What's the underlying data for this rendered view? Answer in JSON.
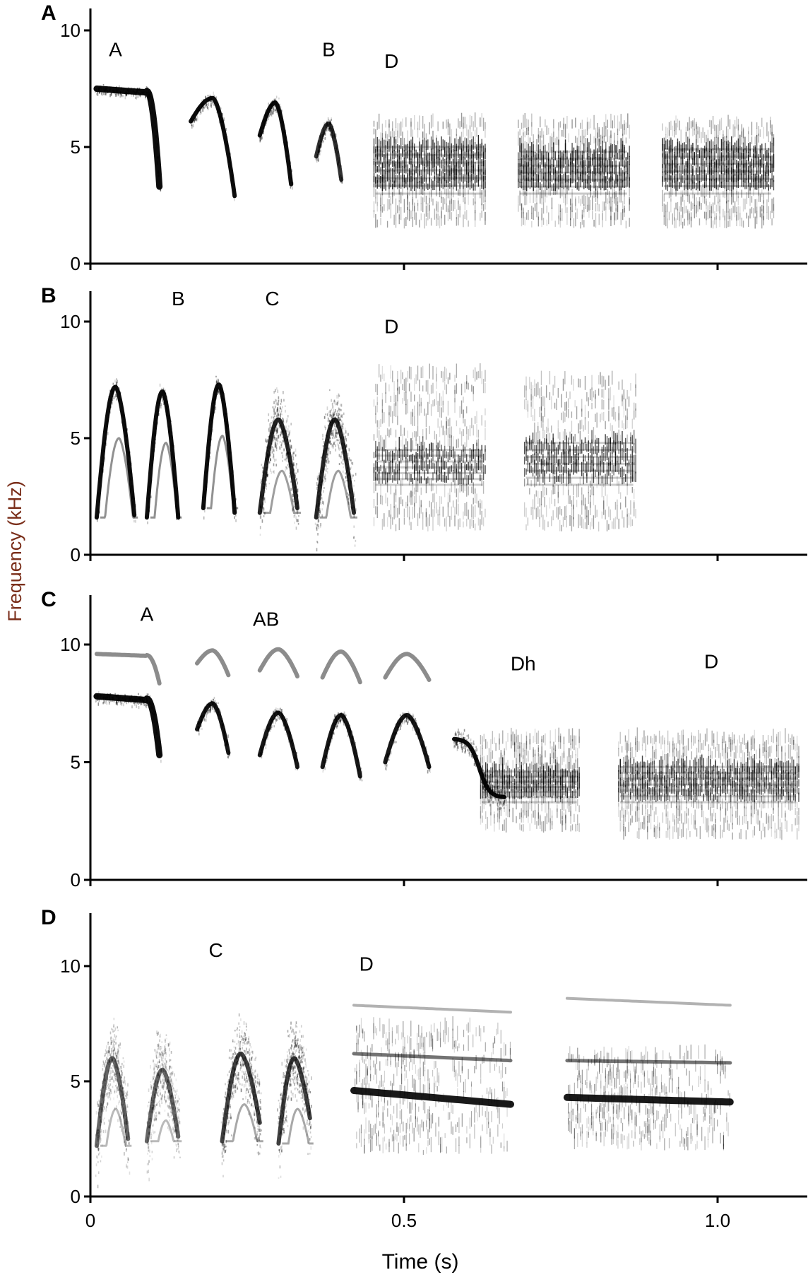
{
  "figure": {
    "ylabel": "Frequency (kHz)",
    "xlabel": "Time (s)",
    "x_ticks": [
      "0",
      "0.5",
      "1.0"
    ],
    "colors": {
      "ink": "#000000",
      "axis_label": "#7a2e1a",
      "background": "#ffffff"
    }
  },
  "chart_data": [
    {
      "type": "spectrogram",
      "panel": "A",
      "xlim": [
        0,
        1.15
      ],
      "ylim": [
        0,
        11
      ],
      "y_ticks": [
        "0",
        "5",
        "10"
      ],
      "syllable_labels": [
        {
          "text": "A",
          "t": 0.04,
          "f": 8.9
        },
        {
          "text": "B",
          "t": 0.38,
          "f": 8.9
        },
        {
          "text": "D",
          "t": 0.48,
          "f": 8.4
        }
      ],
      "notes": [
        {
          "shape": "flat_drop",
          "t0": 0.01,
          "t1": 0.11,
          "f": 7.4,
          "f_end": 3.3,
          "spread": 0.25,
          "intensity": 0.95
        },
        {
          "shape": "arch",
          "t0": 0.16,
          "t1": 0.23,
          "f_start": 6.1,
          "f_peak": 7.1,
          "f_end": 2.9,
          "spread": 0.35,
          "intensity": 0.95
        },
        {
          "shape": "arch",
          "t0": 0.27,
          "t1": 0.32,
          "f_start": 5.5,
          "f_peak": 6.9,
          "f_end": 3.4,
          "spread": 0.35,
          "intensity": 0.95
        },
        {
          "shape": "arch",
          "t0": 0.36,
          "t1": 0.4,
          "f_start": 4.6,
          "f_peak": 6.0,
          "f_end": 3.6,
          "spread": 0.4,
          "intensity": 0.8
        },
        {
          "shape": "noise",
          "t0": 0.45,
          "t1": 0.63,
          "f_low": 1.5,
          "f_high": 6.0,
          "core_low": 3.0,
          "core_high": 5.0,
          "intensity": 0.85
        },
        {
          "shape": "noise",
          "t0": 0.68,
          "t1": 0.86,
          "f_low": 1.5,
          "f_high": 6.0,
          "core_low": 3.0,
          "core_high": 4.8,
          "intensity": 0.85
        },
        {
          "shape": "noise",
          "t0": 0.91,
          "t1": 1.09,
          "f_low": 1.5,
          "f_high": 6.0,
          "core_low": 3.0,
          "core_high": 4.9,
          "intensity": 0.85
        }
      ]
    },
    {
      "type": "spectrogram",
      "panel": "B",
      "xlim": [
        0,
        1.15
      ],
      "ylim": [
        0,
        11
      ],
      "y_ticks": [
        "0",
        "5",
        "10"
      ],
      "syllable_labels": [
        {
          "text": "B",
          "t": 0.14,
          "f": 10.7
        },
        {
          "text": "C",
          "t": 0.29,
          "f": 10.7
        },
        {
          "text": "D",
          "t": 0.48,
          "f": 9.5
        }
      ],
      "notes": [
        {
          "shape": "v_arch",
          "t0": 0.01,
          "t1": 0.07,
          "f_start": 1.6,
          "f_peak": 7.2,
          "f_end": 1.7,
          "spread": 0.5,
          "intensity": 0.95
        },
        {
          "shape": "v_arch",
          "t0": 0.09,
          "t1": 0.14,
          "f_start": 1.6,
          "f_peak": 7.0,
          "f_end": 1.6,
          "spread": 0.5,
          "intensity": 0.95
        },
        {
          "shape": "v_arch",
          "t0": 0.18,
          "t1": 0.23,
          "f_start": 2.0,
          "f_peak": 7.3,
          "f_end": 1.8,
          "spread": 0.5,
          "intensity": 0.95
        },
        {
          "shape": "noisy_arch",
          "t0": 0.27,
          "t1": 0.33,
          "f_start": 1.8,
          "f_peak": 5.8,
          "f_end": 2.0,
          "spread": 0.9,
          "intensity": 0.85
        },
        {
          "shape": "noisy_arch",
          "t0": 0.36,
          "t1": 0.42,
          "f_start": 1.6,
          "f_peak": 5.8,
          "f_end": 1.8,
          "spread": 0.9,
          "intensity": 0.85
        },
        {
          "shape": "noise",
          "t0": 0.45,
          "t1": 0.63,
          "f_low": 1.0,
          "f_high": 7.8,
          "core_low": 3.0,
          "core_high": 4.5,
          "intensity": 0.8
        },
        {
          "shape": "noise",
          "t0": 0.69,
          "t1": 0.87,
          "f_low": 1.0,
          "f_high": 7.5,
          "core_low": 3.0,
          "core_high": 4.8,
          "intensity": 0.8
        }
      ]
    },
    {
      "type": "spectrogram",
      "panel": "C",
      "xlim": [
        0,
        1.15
      ],
      "ylim": [
        0,
        12
      ],
      "y_ticks": [
        "0",
        "5",
        "10"
      ],
      "syllable_labels": [
        {
          "text": "A",
          "t": 0.09,
          "f": 11.0
        },
        {
          "text": "AB",
          "t": 0.28,
          "f": 10.8
        },
        {
          "text": "Dh",
          "t": 0.69,
          "f": 8.9
        },
        {
          "text": "D",
          "t": 0.99,
          "f": 9.0
        }
      ],
      "notes": [
        {
          "shape": "flat_drop",
          "t0": 0.01,
          "t1": 0.11,
          "f": 7.7,
          "f_end": 5.3,
          "spread": 0.3,
          "intensity": 0.95,
          "harmonic": 9.6
        },
        {
          "shape": "arch",
          "t0": 0.17,
          "t1": 0.22,
          "f_start": 6.4,
          "f_peak": 7.5,
          "f_end": 5.4,
          "spread": 0.35,
          "intensity": 0.9,
          "harmonic": 9.2
        },
        {
          "shape": "arch",
          "t0": 0.27,
          "t1": 0.33,
          "f_start": 5.3,
          "f_peak": 7.1,
          "f_end": 4.8,
          "spread": 0.35,
          "intensity": 0.9,
          "harmonic": 8.9
        },
        {
          "shape": "arch",
          "t0": 0.37,
          "t1": 0.43,
          "f_start": 4.8,
          "f_peak": 7.0,
          "f_end": 4.4,
          "spread": 0.35,
          "intensity": 0.9,
          "harmonic": 8.6
        },
        {
          "shape": "arch",
          "t0": 0.47,
          "t1": 0.54,
          "f_start": 5.0,
          "f_peak": 7.0,
          "f_end": 4.8,
          "spread": 0.35,
          "intensity": 0.9,
          "harmonic": 8.6
        },
        {
          "shape": "sweep_down",
          "t0": 0.58,
          "t1": 0.66,
          "f_start": 6.0,
          "f_end": 3.5,
          "spread": 0.6,
          "intensity": 0.95
        },
        {
          "shape": "noise",
          "t0": 0.62,
          "t1": 0.78,
          "f_low": 2.0,
          "f_high": 6.0,
          "core_low": 3.3,
          "core_high": 4.6,
          "intensity": 0.8
        },
        {
          "shape": "noise",
          "t0": 0.84,
          "t1": 1.13,
          "f_low": 1.7,
          "f_high": 6.0,
          "core_low": 3.3,
          "core_high": 4.8,
          "intensity": 0.75
        }
      ]
    },
    {
      "type": "spectrogram",
      "panel": "D",
      "xlim": [
        0,
        1.15
      ],
      "ylim": [
        0,
        12
      ],
      "y_ticks": [
        "0",
        "5",
        "10"
      ],
      "syllable_labels": [
        {
          "text": "C",
          "t": 0.2,
          "f": 10.4
        },
        {
          "text": "D",
          "t": 0.44,
          "f": 9.8
        }
      ],
      "notes": [
        {
          "shape": "noisy_arch",
          "t0": 0.01,
          "t1": 0.06,
          "f_start": 2.2,
          "f_peak": 6.0,
          "f_end": 2.5,
          "spread": 1.2,
          "intensity": 0.6
        },
        {
          "shape": "noisy_arch",
          "t0": 0.09,
          "t1": 0.14,
          "f_start": 2.4,
          "f_peak": 5.5,
          "f_end": 2.6,
          "spread": 1.2,
          "intensity": 0.6
        },
        {
          "shape": "noisy_arch",
          "t0": 0.21,
          "t1": 0.27,
          "f_start": 2.4,
          "f_peak": 6.2,
          "f_end": 3.2,
          "spread": 1.1,
          "intensity": 0.75
        },
        {
          "shape": "noisy_arch",
          "t0": 0.3,
          "t1": 0.35,
          "f_start": 2.3,
          "f_peak": 6.0,
          "f_end": 3.4,
          "spread": 1.1,
          "intensity": 0.75
        },
        {
          "shape": "tone_block",
          "t0": 0.42,
          "t1": 0.67,
          "f": 4.6,
          "f_end": 4.0,
          "harmonic": 6.2,
          "upper": 8.3,
          "f_low": 1.8,
          "f_high": 7.2,
          "intensity": 0.9
        },
        {
          "shape": "tone_block",
          "t0": 0.76,
          "t1": 1.02,
          "f": 4.3,
          "f_end": 4.1,
          "harmonic": 5.9,
          "upper": 8.6,
          "f_low": 2.0,
          "f_high": 6.0,
          "intensity": 0.9
        }
      ]
    }
  ]
}
